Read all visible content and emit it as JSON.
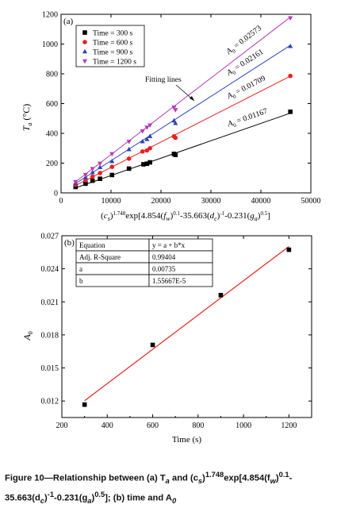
{
  "chart_data": [
    {
      "type": "scatter",
      "panel_label": "(a)",
      "xlabel": "(c_s)^1.748 exp[4.854(f_w)^0.1-35.663(d_c)^-1-0.231(g_a)^0.5]",
      "ylabel": "T_a (°C)",
      "xlim": [
        0,
        50000
      ],
      "ylim": [
        0,
        1200
      ],
      "xticks": [
        0,
        10000,
        20000,
        30000,
        40000,
        50000
      ],
      "yticks": [
        0,
        200,
        400,
        600,
        800,
        1000,
        1200
      ],
      "legend_position": "top-left",
      "fitting_label": "Fitting lines",
      "series": [
        {
          "name": "Time = 300 s",
          "marker": "square",
          "color": "#000000",
          "fit_label": "A0 = 0.01167",
          "slope": 0.01167,
          "points": [
            [
              2900,
              40
            ],
            [
              4900,
              62
            ],
            [
              6300,
              82
            ],
            [
              7800,
              95
            ],
            [
              10200,
              120
            ],
            [
              13600,
              163
            ],
            [
              16500,
              192
            ],
            [
              17200,
              196
            ],
            [
              17800,
              205
            ],
            [
              22600,
              262
            ],
            [
              22900,
              255
            ],
            [
              45900,
              545
            ]
          ]
        },
        {
          "name": "Time = 600 s",
          "marker": "circle",
          "color": "#e8221f",
          "fit_label": "A0 = 0.01709",
          "slope": 0.01709,
          "points": [
            [
              2900,
              55
            ],
            [
              4900,
              85
            ],
            [
              6300,
              110
            ],
            [
              7800,
              133
            ],
            [
              10200,
              175
            ],
            [
              13600,
              230
            ],
            [
              16300,
              278
            ],
            [
              17200,
              285
            ],
            [
              17800,
              300
            ],
            [
              22600,
              380
            ],
            [
              22900,
              370
            ],
            [
              45900,
              786
            ]
          ]
        },
        {
          "name": "Time = 900 s",
          "marker": "triangle-up",
          "color": "#2c45b5",
          "fit_label": "A0 = 0.02161",
          "slope": 0.02161,
          "points": [
            [
              2900,
              65
            ],
            [
              4900,
              105
            ],
            [
              6300,
              138
            ],
            [
              7800,
              172
            ],
            [
              10200,
              212
            ],
            [
              13600,
              292
            ],
            [
              16300,
              345
            ],
            [
              17200,
              360
            ],
            [
              17800,
              380
            ],
            [
              22600,
              485
            ],
            [
              22900,
              468
            ],
            [
              45900,
              985
            ]
          ]
        },
        {
          "name": "Time = 1200 s",
          "marker": "triangle-down",
          "color": "#b43cb4",
          "fit_label": "A0 = 0.02573",
          "slope": 0.02573,
          "points": [
            [
              2900,
              75
            ],
            [
              4900,
              122
            ],
            [
              6300,
              162
            ],
            [
              7800,
              198
            ],
            [
              10200,
              262
            ],
            [
              13600,
              345
            ],
            [
              16300,
              415
            ],
            [
              17200,
              440
            ],
            [
              17800,
              455
            ],
            [
              22600,
              575
            ],
            [
              22900,
              558
            ],
            [
              45900,
              1175
            ]
          ]
        }
      ]
    },
    {
      "type": "scatter",
      "panel_label": "(b)",
      "xlabel": "Time (s)",
      "ylabel": "A0",
      "xlim": [
        200,
        1300
      ],
      "ylim": [
        0.0105,
        0.027
      ],
      "xticks": [
        200,
        400,
        600,
        800,
        1000,
        1200
      ],
      "yticks": [
        0.012,
        0.015,
        0.018,
        0.021,
        0.024,
        0.027
      ],
      "ytick_labels": [
        "0.012",
        "0.015",
        "0.018",
        "0.021",
        "0.024",
        "0.027"
      ],
      "points": [
        [
          300,
          0.01167
        ],
        [
          600,
          0.01709
        ],
        [
          900,
          0.02161
        ],
        [
          1200,
          0.02573
        ]
      ],
      "fit": {
        "intercept": 0.00735,
        "slope": 1.55667e-05,
        "x_range": [
          300,
          1200
        ],
        "color": "#e8221f"
      },
      "stats_table": [
        [
          "Equation",
          "y = a + b*x"
        ],
        [
          "Adj. R-Square",
          "0.99404"
        ],
        [
          "a",
          "0.00735"
        ],
        [
          "b",
          "1.55667E-5"
        ]
      ]
    }
  ],
  "caption": {
    "line1": "Figure 10—Relationship between (a) T",
    "line1_sub": "a",
    "line1_mid": " and (c",
    "line1_sub2": "s",
    "line1_mid2": ")",
    "line1_sup": "1.748",
    "line1_mid3": "exp[4.854(f",
    "line1_sub3": "w",
    "line1_mid4": ")",
    "line1_sup2": "0.1",
    "line1_end": "-",
    "line2": "35.663(d",
    "line2_sub": "c",
    "line2_mid": ")",
    "line2_sup": "-1",
    "line2_mid2": "-0.231(g",
    "line2_sub2": "a",
    "line2_mid3": ")",
    "line2_sup2": "0.5",
    "line2_mid4": "]; (b) time and A",
    "line2_sub3": "0"
  }
}
